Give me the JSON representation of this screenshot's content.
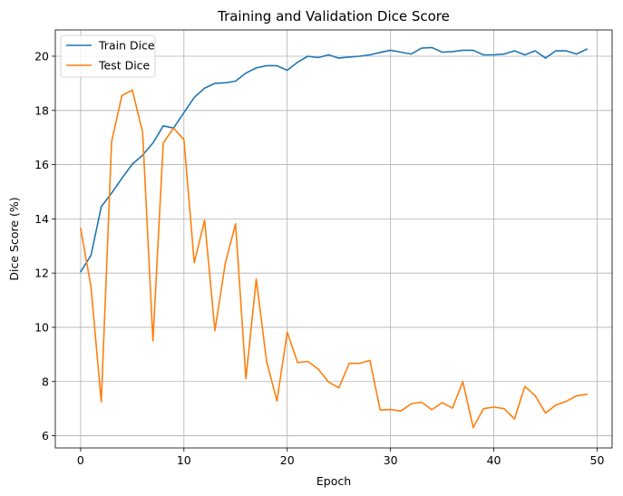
{
  "chart_data": {
    "type": "line",
    "title": "Training and Validation Dice Score",
    "xlabel": "Epoch",
    "ylabel": "Dice Score (%)",
    "xlim": [
      -2.45,
      51.45
    ],
    "ylim": [
      5.55,
      20.97
    ],
    "xticks": [
      0,
      10,
      20,
      30,
      40,
      50
    ],
    "yticks": [
      6,
      8,
      10,
      12,
      14,
      16,
      18,
      20
    ],
    "grid": true,
    "legend_position": "top-left",
    "x": [
      0,
      1,
      2,
      3,
      4,
      5,
      6,
      7,
      8,
      9,
      10,
      11,
      12,
      13,
      14,
      15,
      16,
      17,
      18,
      19,
      20,
      21,
      22,
      23,
      24,
      25,
      26,
      27,
      28,
      29,
      30,
      31,
      32,
      33,
      34,
      35,
      36,
      37,
      38,
      39,
      40,
      41,
      42,
      43,
      44,
      45,
      46,
      47,
      48,
      49
    ],
    "series": [
      {
        "name": "Train Dice",
        "color": "#1f77b4",
        "values": [
          12.05,
          12.65,
          14.45,
          14.95,
          15.5,
          16.02,
          16.35,
          16.8,
          17.43,
          17.35,
          17.92,
          18.48,
          18.82,
          19.0,
          19.02,
          19.08,
          19.38,
          19.57,
          19.65,
          19.65,
          19.48,
          19.78,
          20.0,
          19.95,
          20.05,
          19.93,
          19.97,
          20.0,
          20.05,
          20.14,
          20.22,
          20.15,
          20.08,
          20.3,
          20.32,
          20.15,
          20.17,
          20.22,
          20.22,
          20.05,
          20.05,
          20.08,
          20.2,
          20.05,
          20.2,
          19.93,
          20.2,
          20.2,
          20.08,
          20.26
        ]
      },
      {
        "name": "Test Dice",
        "color": "#ff7f0e",
        "values": [
          13.65,
          11.5,
          7.25,
          16.85,
          18.55,
          18.75,
          17.2,
          9.5,
          16.8,
          17.35,
          16.92,
          12.38,
          13.95,
          9.88,
          12.35,
          13.82,
          8.1,
          11.78,
          8.75,
          7.28,
          9.82,
          8.7,
          8.74,
          8.46,
          7.98,
          7.77,
          8.67,
          8.67,
          8.78,
          6.95,
          6.97,
          6.91,
          7.18,
          7.24,
          6.96,
          7.22,
          7.02,
          8.0,
          6.3,
          7.0,
          7.06,
          7.0,
          6.62,
          7.82,
          7.48,
          6.84,
          7.13,
          7.27,
          7.47,
          7.53
        ]
      }
    ]
  }
}
